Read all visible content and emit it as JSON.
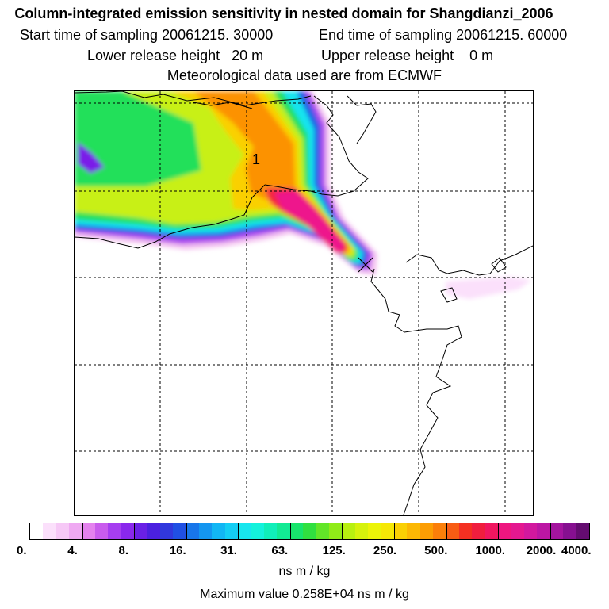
{
  "title": "Column-integrated emission sensitivity in nested domain for Shangdianzi_2006",
  "sampling": {
    "start_label": "Start time of sampling",
    "start_value": "20061215. 30000",
    "end_label": "End time of sampling",
    "end_value": "20061215. 60000"
  },
  "release": {
    "lower_label": "Lower release height",
    "lower_value": "20 m",
    "upper_label": "Upper release height",
    "upper_value": "0 m"
  },
  "meteo": "Meteorological data used are from ECMWF",
  "map": {
    "contour_label": "1",
    "receptor_marker": "station-cross-icon"
  },
  "colorbar": {
    "ticks": [
      "0.",
      "4.",
      "8.",
      "16.",
      "31.",
      "63.",
      "125.",
      "250.",
      "500.",
      "1000.",
      "2000.",
      "4000."
    ],
    "colors": [
      "#ffffff",
      "#fbe0fb",
      "#f6c8f6",
      "#efa9f2",
      "#e482ee",
      "#c95ced",
      "#a63ef0",
      "#8a28ec",
      "#6a20e6",
      "#4b20e0",
      "#3138dd",
      "#2050e4",
      "#1876ea",
      "#1496f0",
      "#12b6f4",
      "#14cef4",
      "#18e6ee",
      "#14f2dc",
      "#10efba",
      "#12ea94",
      "#18e46c",
      "#30e040",
      "#62e628",
      "#90ec18",
      "#b8f010",
      "#d6f20c",
      "#ecf408",
      "#f6e806",
      "#fad004",
      "#fcb804",
      "#fc9e04",
      "#fb7f0a",
      "#f85c14",
      "#f43022",
      "#f01e3e",
      "#f01660",
      "#ee1680",
      "#e41890",
      "#d2189e",
      "#bc16a4",
      "#a4149e",
      "#861090",
      "#640c70"
    ],
    "units": "ns m / kg"
  },
  "max_value": "Maximum value  0.258E+04 ns m / kg"
}
